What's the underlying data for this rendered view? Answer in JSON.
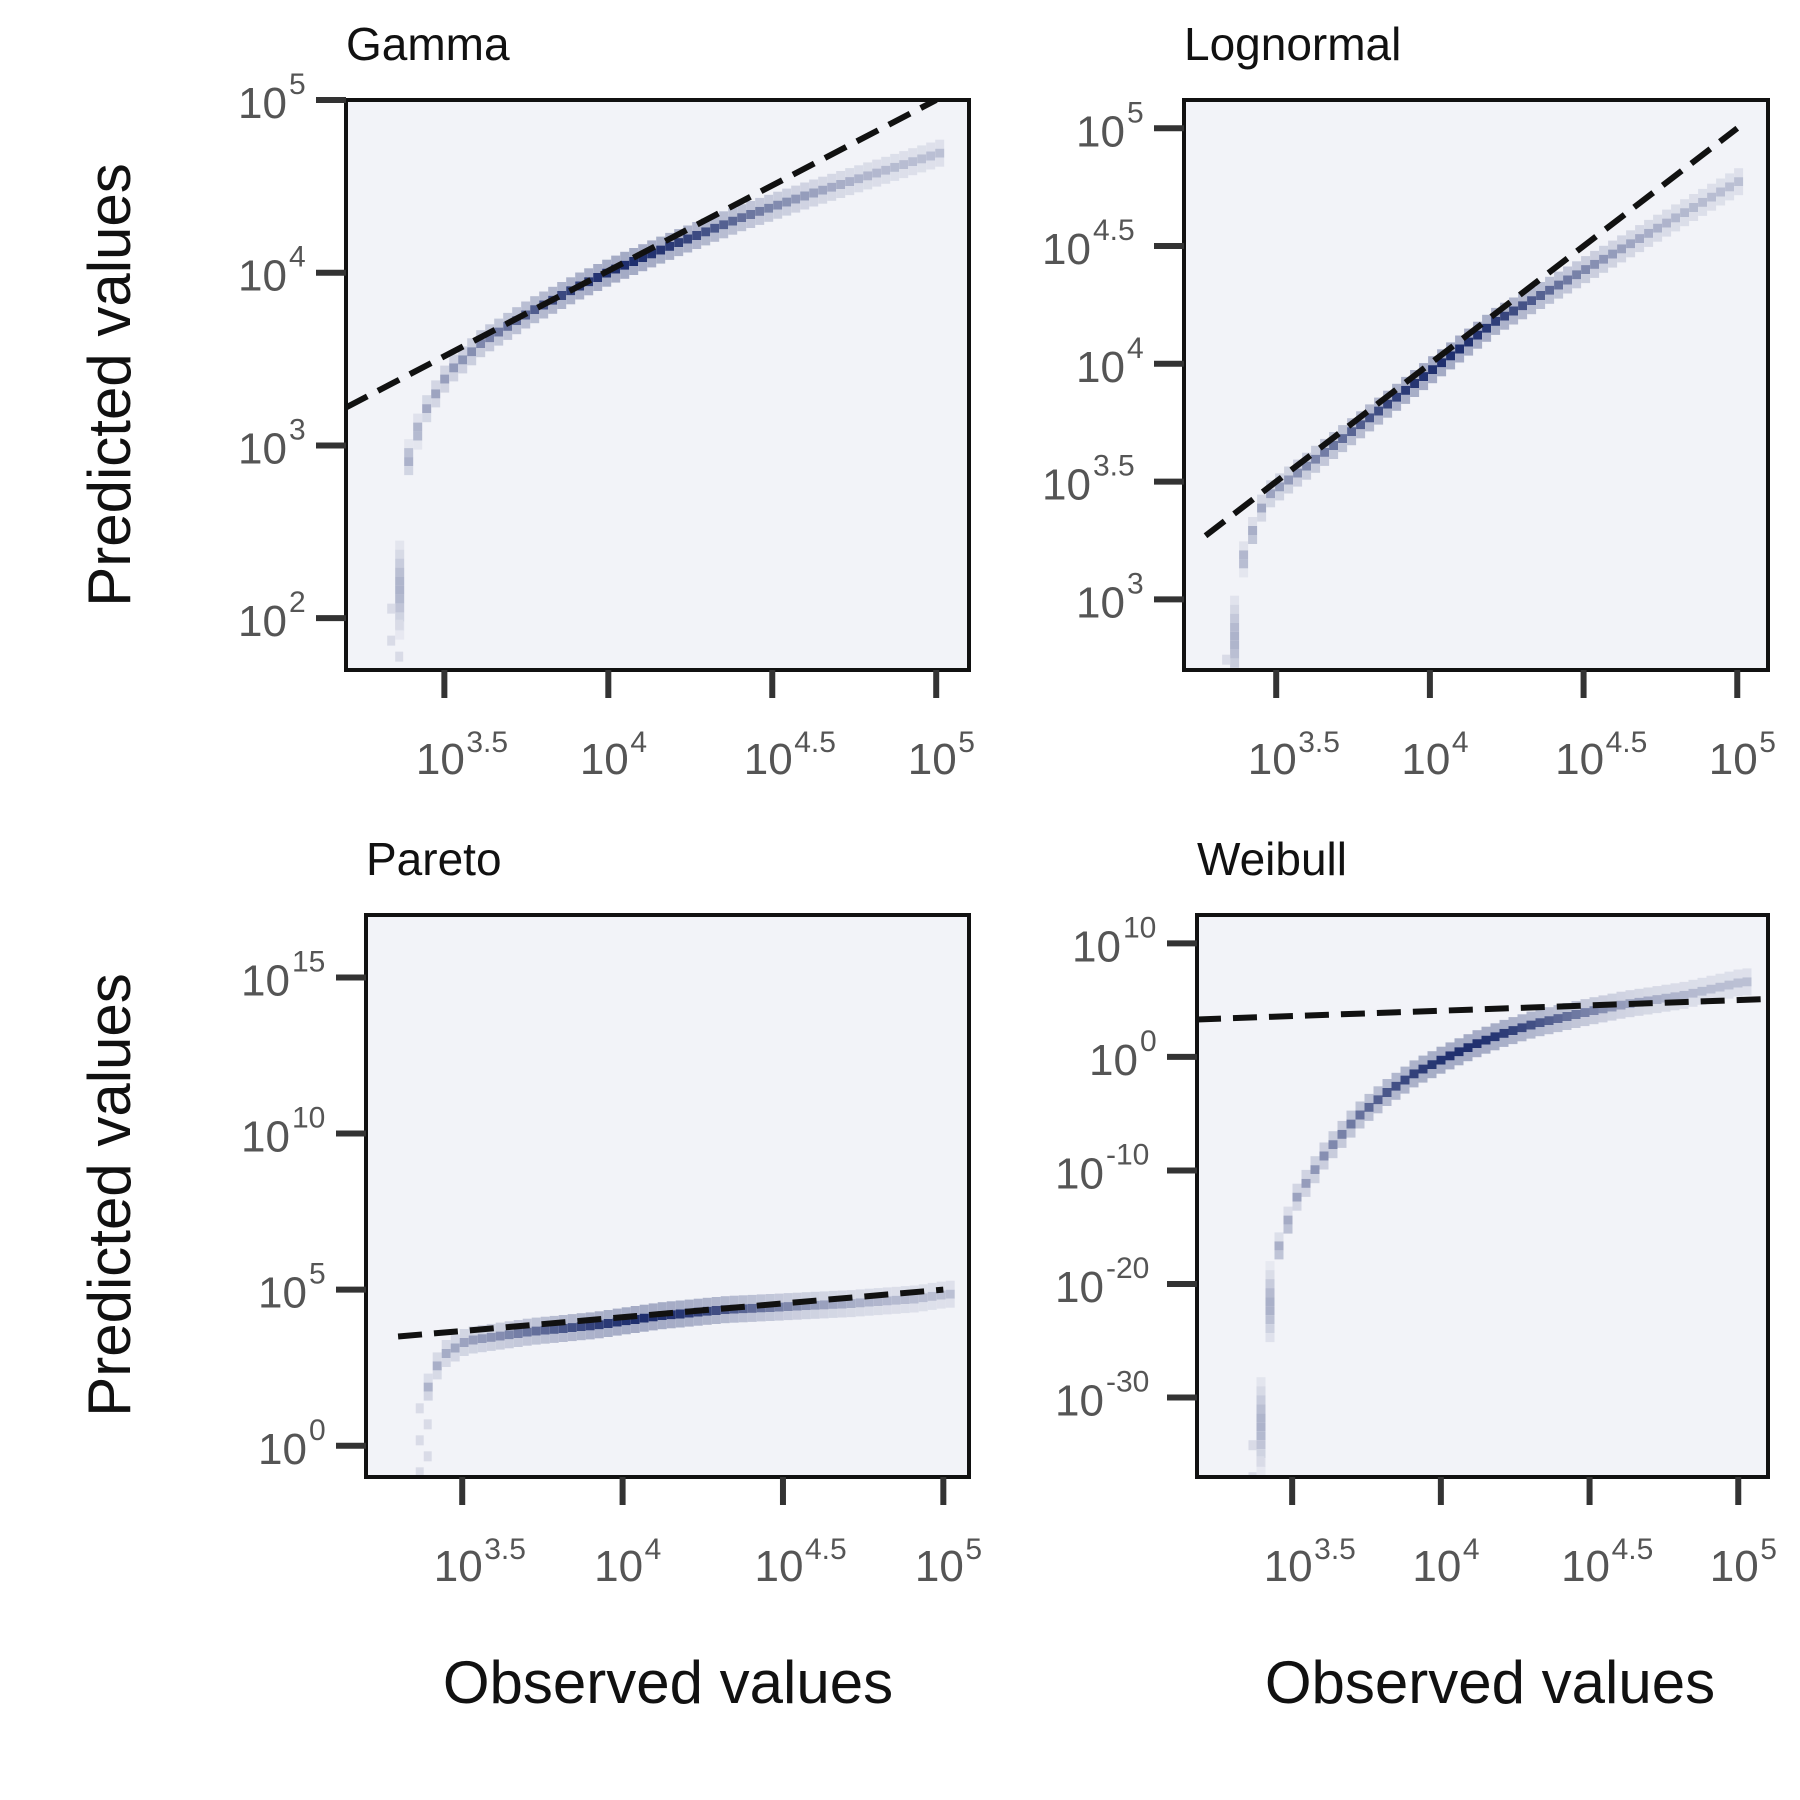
{
  "figure": {
    "ylabel": "Predicted values",
    "xlabel": "Observed values"
  },
  "chart_data": [
    {
      "type": "heatmap",
      "title": "Gamma",
      "x_scale": "log10",
      "y_scale": "log10",
      "xlim": [
        3.2,
        5.1
      ],
      "ylim": [
        1.7,
        5.0
      ],
      "xticks": [
        3.5,
        4,
        4.5,
        5
      ],
      "xtick_labels": [
        {
          "base": "10",
          "exp": "3.5"
        },
        {
          "base": "10",
          "exp": "4"
        },
        {
          "base": "10",
          "exp": "4.5"
        },
        {
          "base": "10",
          "exp": "5"
        }
      ],
      "yticks": [
        2,
        3,
        4,
        5
      ],
      "ytick_labels": [
        {
          "base": "10",
          "exp": "2"
        },
        {
          "base": "10",
          "exp": "3"
        },
        {
          "base": "10",
          "exp": "4"
        },
        {
          "base": "10",
          "exp": "5"
        }
      ],
      "reference_line": {
        "style": "dashed",
        "x": [
          3.2,
          5.0
        ],
        "y": [
          3.22,
          5.0
        ]
      },
      "density_ridge": {
        "x": [
          3.35,
          3.37,
          3.42,
          3.5,
          3.6,
          3.75,
          3.9,
          4.0,
          4.2,
          4.4,
          4.6,
          4.8,
          5.0
        ],
        "y": [
          2.2,
          2.9,
          3.2,
          3.45,
          3.62,
          3.8,
          3.95,
          4.04,
          4.2,
          4.35,
          4.48,
          4.6,
          4.72
        ]
      },
      "cmap": [
        "#f2f3f8",
        "#1f2f6e"
      ]
    },
    {
      "type": "heatmap",
      "title": "Lognormal",
      "x_scale": "log10",
      "y_scale": "log10",
      "xlim": [
        3.2,
        5.1
      ],
      "ylim": [
        2.7,
        5.12
      ],
      "xticks": [
        3.5,
        4,
        4.5,
        5
      ],
      "xtick_labels": [
        {
          "base": "10",
          "exp": "3.5"
        },
        {
          "base": "10",
          "exp": "4"
        },
        {
          "base": "10",
          "exp": "4.5"
        },
        {
          "base": "10",
          "exp": "5"
        }
      ],
      "yticks": [
        3,
        3.5,
        4,
        4.5,
        5
      ],
      "ytick_labels": [
        {
          "base": "10",
          "exp": "3"
        },
        {
          "base": "10",
          "exp": "3.5"
        },
        {
          "base": "10",
          "exp": "4"
        },
        {
          "base": "10",
          "exp": "4.5"
        },
        {
          "base": "10",
          "exp": "5"
        }
      ],
      "reference_line": {
        "style": "dashed",
        "x": [
          3.27,
          5.0
        ],
        "y": [
          3.27,
          5.0
        ]
      },
      "density_ridge": {
        "x": [
          3.35,
          3.38,
          3.45,
          3.6,
          3.8,
          4.0,
          4.2,
          4.4,
          4.6,
          4.8,
          5.0
        ],
        "y": [
          2.85,
          3.2,
          3.45,
          3.6,
          3.8,
          4.0,
          4.2,
          4.35,
          4.5,
          4.65,
          4.8
        ]
      },
      "cmap": [
        "#f2f3f8",
        "#1f2f6e"
      ]
    },
    {
      "type": "heatmap",
      "title": "Pareto",
      "x_scale": "log10",
      "y_scale": "log10",
      "xlim": [
        3.2,
        5.08
      ],
      "ylim": [
        -1.0,
        17.0
      ],
      "xticks": [
        3.5,
        4,
        4.5,
        5
      ],
      "xtick_labels": [
        {
          "base": "10",
          "exp": "3.5"
        },
        {
          "base": "10",
          "exp": "4"
        },
        {
          "base": "10",
          "exp": "4.5"
        },
        {
          "base": "10",
          "exp": "5"
        }
      ],
      "yticks": [
        0,
        5,
        10,
        15
      ],
      "ytick_labels": [
        {
          "base": "10",
          "exp": "0"
        },
        {
          "base": "10",
          "exp": "5"
        },
        {
          "base": "10",
          "exp": "10"
        },
        {
          "base": "10",
          "exp": "15"
        }
      ],
      "reference_line": {
        "style": "dashed",
        "x": [
          3.3,
          5.0
        ],
        "y": [
          3.5,
          5.0
        ]
      },
      "density_ridge": {
        "x": [
          3.38,
          3.42,
          3.5,
          3.7,
          3.9,
          4.1,
          4.3,
          4.5,
          4.7,
          4.9,
          5.0
        ],
        "y": [
          2.0,
          3.0,
          3.5,
          3.8,
          4.0,
          4.3,
          4.5,
          4.6,
          4.7,
          4.85,
          5.0
        ]
      },
      "cmap": [
        "#f2f3f8",
        "#1f2f6e"
      ]
    },
    {
      "type": "heatmap",
      "title": "Weibull",
      "x_scale": "log10",
      "y_scale": "log10",
      "xlim": [
        3.18,
        5.1
      ],
      "ylim": [
        -37.0,
        12.5
      ],
      "xticks": [
        3.5,
        4,
        4.5,
        5
      ],
      "xtick_labels": [
        {
          "base": "10",
          "exp": "3.5"
        },
        {
          "base": "10",
          "exp": "4"
        },
        {
          "base": "10",
          "exp": "4.5"
        },
        {
          "base": "10",
          "exp": "5"
        }
      ],
      "yticks": [
        -30,
        -20,
        -10,
        0,
        10
      ],
      "ytick_labels": [
        {
          "base": "10",
          "exp": "-30"
        },
        {
          "base": "10",
          "exp": "-20"
        },
        {
          "base": "10",
          "exp": "-10"
        },
        {
          "base": "10",
          "exp": "0"
        },
        {
          "base": "10",
          "exp": "10"
        }
      ],
      "reference_line": {
        "style": "dashed",
        "x": [
          3.18,
          5.1
        ],
        "y": [
          3.3,
          5.1
        ]
      },
      "density_ridge": {
        "x": [
          3.38,
          3.42,
          3.5,
          3.6,
          3.7,
          3.8,
          3.9,
          4.0,
          4.1,
          4.2,
          4.3,
          4.45,
          4.6,
          4.8,
          5.0
        ],
        "y": [
          -32,
          -18,
          -12,
          -8,
          -5,
          -2.8,
          -1,
          0.3,
          1.5,
          2.5,
          3.3,
          4.2,
          5.0,
          5.8,
          7.0
        ]
      },
      "cmap": [
        "#f2f3f8",
        "#1f2f6e"
      ]
    }
  ]
}
